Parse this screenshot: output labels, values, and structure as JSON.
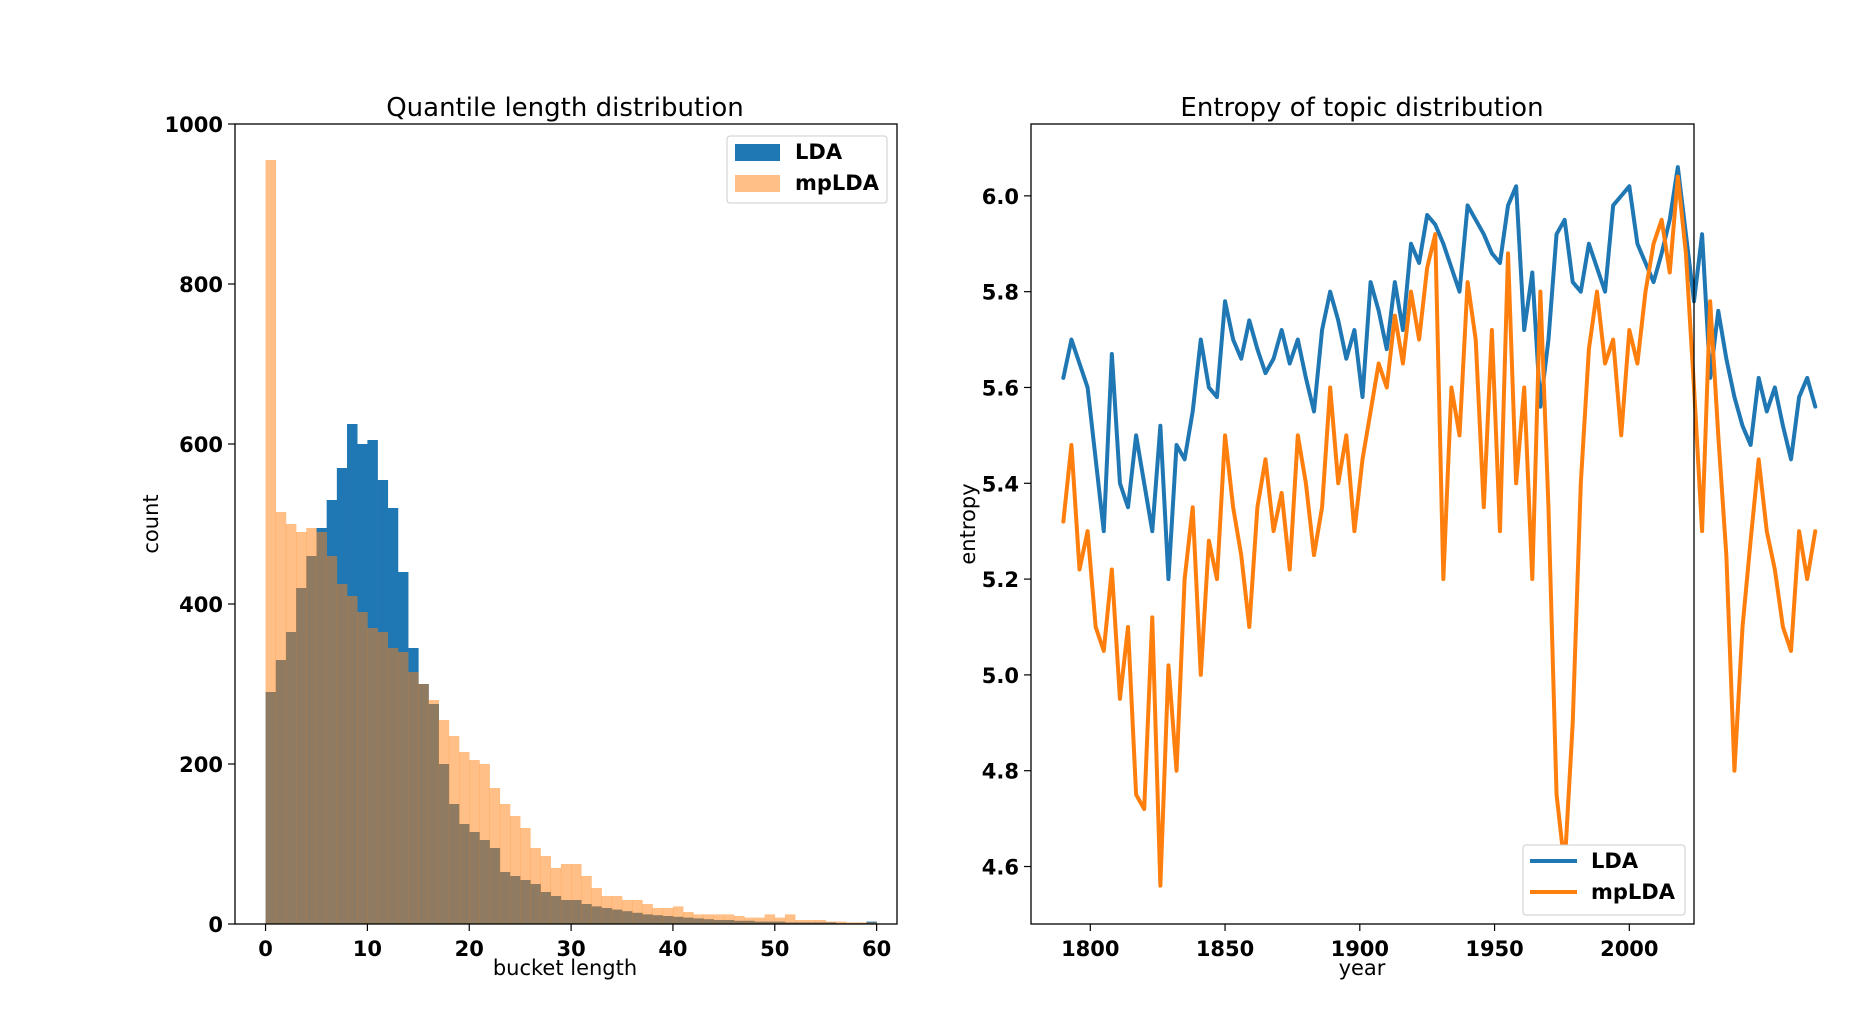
{
  "chart_data": [
    {
      "type": "bar",
      "title": "Quantile length distribution",
      "xlabel": "bucket length",
      "ylabel": "count",
      "xlim": [
        -3,
        62
      ],
      "ylim": [
        0,
        1000
      ],
      "xticks": [
        "0",
        "10",
        "20",
        "30",
        "40",
        "50",
        "60"
      ],
      "yticks": [
        "0",
        "200",
        "400",
        "600",
        "800",
        "1000"
      ],
      "bin_width": 1,
      "bin_start": 0,
      "legend": {
        "placement": "upper right",
        "entries": [
          "LDA",
          "mpLDA"
        ]
      },
      "series": [
        {
          "name": "LDA",
          "color": "#1f77b4",
          "values": [
            290,
            330,
            365,
            420,
            460,
            495,
            530,
            570,
            625,
            600,
            605,
            555,
            520,
            440,
            345,
            300,
            275,
            200,
            150,
            125,
            115,
            105,
            95,
            65,
            60,
            55,
            50,
            40,
            35,
            30,
            30,
            25,
            22,
            20,
            18,
            16,
            14,
            12,
            11,
            10,
            9,
            8,
            7,
            6,
            5,
            5,
            4,
            4,
            3,
            3,
            3,
            2,
            2,
            2,
            2,
            2,
            1,
            1,
            1,
            3
          ]
        },
        {
          "name": "mpLDA",
          "color": "#ff7f0e",
          "values": [
            955,
            515,
            500,
            490,
            495,
            490,
            460,
            425,
            410,
            390,
            370,
            365,
            345,
            340,
            315,
            300,
            280,
            255,
            235,
            215,
            205,
            200,
            170,
            150,
            135,
            120,
            95,
            85,
            70,
            75,
            75,
            60,
            45,
            35,
            35,
            30,
            30,
            25,
            20,
            20,
            22,
            15,
            12,
            12,
            12,
            12,
            10,
            8,
            8,
            12,
            8,
            12,
            5,
            5,
            5,
            3,
            3,
            2,
            2,
            2
          ]
        }
      ]
    },
    {
      "type": "line",
      "title": "Entropy of topic distribution",
      "xlabel": "year",
      "ylabel": "entropy",
      "xlim": [
        1778,
        2024
      ],
      "ylim": [
        4.48,
        6.15
      ],
      "xticks": [
        "1800",
        "1850",
        "1900",
        "1950",
        "2000"
      ],
      "yticks": [
        "4.6",
        "4.8",
        "5.0",
        "5.2",
        "5.4",
        "5.6",
        "5.8",
        "6.0"
      ],
      "legend": {
        "placement": "lower right",
        "entries": [
          "LDA",
          "mpLDA"
        ]
      },
      "x_start": 1790,
      "x_step": 3,
      "series": [
        {
          "name": "LDA",
          "color": "#1f77b4",
          "values": [
            5.62,
            5.7,
            5.65,
            5.6,
            5.45,
            5.3,
            5.67,
            5.4,
            5.35,
            5.5,
            5.4,
            5.3,
            5.52,
            5.2,
            5.48,
            5.45,
            5.55,
            5.7,
            5.6,
            5.58,
            5.78,
            5.7,
            5.66,
            5.74,
            5.68,
            5.63,
            5.66,
            5.72,
            5.65,
            5.7,
            5.62,
            5.55,
            5.72,
            5.8,
            5.74,
            5.66,
            5.72,
            5.58,
            5.82,
            5.76,
            5.68,
            5.82,
            5.72,
            5.9,
            5.86,
            5.96,
            5.94,
            5.9,
            5.85,
            5.8,
            5.98,
            5.95,
            5.92,
            5.88,
            5.86,
            5.98,
            6.02,
            5.72,
            5.84,
            5.56,
            5.7,
            5.92,
            5.95,
            5.82,
            5.8,
            5.9,
            5.85,
            5.8,
            5.98,
            6.0,
            6.02,
            5.9,
            5.86,
            5.82,
            5.88,
            5.95,
            6.06,
            5.92,
            5.78,
            5.92,
            5.62,
            5.76,
            5.66,
            5.58,
            5.52,
            5.48,
            5.62,
            5.55,
            5.6,
            5.52,
            5.45,
            5.58,
            5.62,
            5.56
          ]
        },
        {
          "name": "mpLDA",
          "color": "#ff7f0e",
          "values": [
            5.32,
            5.48,
            5.22,
            5.3,
            5.1,
            5.05,
            5.22,
            4.95,
            5.1,
            4.75,
            4.72,
            5.12,
            4.56,
            5.02,
            4.8,
            5.2,
            5.35,
            5.0,
            5.28,
            5.2,
            5.5,
            5.35,
            5.25,
            5.1,
            5.35,
            5.45,
            5.3,
            5.38,
            5.22,
            5.5,
            5.4,
            5.25,
            5.35,
            5.6,
            5.4,
            5.5,
            5.3,
            5.45,
            5.55,
            5.65,
            5.6,
            5.75,
            5.65,
            5.8,
            5.7,
            5.85,
            5.92,
            5.2,
            5.6,
            5.5,
            5.82,
            5.7,
            5.35,
            5.72,
            5.3,
            5.88,
            5.4,
            5.6,
            5.2,
            5.8,
            5.35,
            4.75,
            4.6,
            4.9,
            5.4,
            5.68,
            5.8,
            5.65,
            5.7,
            5.5,
            5.72,
            5.65,
            5.8,
            5.9,
            5.95,
            5.84,
            6.04,
            5.88,
            5.6,
            5.3,
            5.78,
            5.5,
            5.25,
            4.8,
            5.1,
            5.28,
            5.45,
            5.3,
            5.22,
            5.1,
            5.05,
            5.3,
            5.2,
            5.3
          ]
        }
      ]
    }
  ]
}
